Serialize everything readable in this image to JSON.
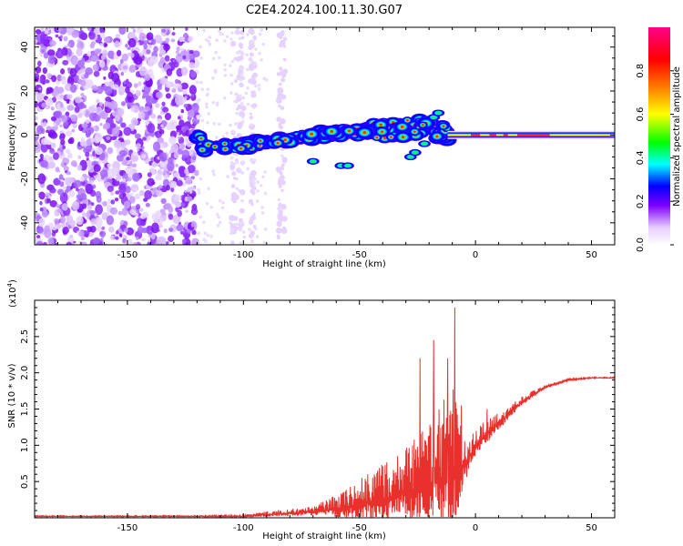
{
  "title": "C2E4.2024.100.11.30.G07",
  "chart_data": [
    {
      "type": "heatmap",
      "title": "C2E4.2024.100.11.30.G07",
      "xlabel": "Height of straight line (km)",
      "ylabel": "Frequency (Hz)",
      "xlim": [
        -190,
        60
      ],
      "ylim": [
        -50,
        49
      ],
      "xticks": [
        -150,
        -100,
        -50,
        0,
        50
      ],
      "xtick_labels": [
        "-150",
        "-100",
        "-50",
        "0",
        "50"
      ],
      "yticks": [
        -40,
        -20,
        0,
        20,
        40
      ],
      "ytick_labels": [
        "-40",
        "-20",
        "0",
        "20",
        "40"
      ],
      "colorbar": {
        "label": "Normalized spectral amplitude",
        "range": [
          0,
          1
        ],
        "ticks": [
          0.0,
          0.2,
          0.4,
          0.6,
          0.8
        ],
        "tick_labels": [
          "0.0",
          "0.2",
          "0.4",
          "0.6",
          "0.8"
        ],
        "colormap": [
          "#ffffff",
          "#7f00ff",
          "#0000ff",
          "#00ffff",
          "#00ff00",
          "#ffff00",
          "#ff8000",
          "#ff0000",
          "#ff0088"
        ]
      },
      "description_series": {
        "noise_region_x": [
          -190,
          -120
        ],
        "noise_sparse_bands_x": [
          [
            -105,
            -100
          ],
          [
            -97,
            -95
          ],
          [
            -85,
            -82
          ]
        ],
        "ridge": [
          {
            "x": -118,
            "y": -6
          },
          {
            "x": -100,
            "y": -5
          },
          {
            "x": -80,
            "y": -2
          },
          {
            "x": -60,
            "y": 1
          },
          {
            "x": -40,
            "y": 2
          },
          {
            "x": -20,
            "y": 4
          },
          {
            "x": -12,
            "y": 0
          },
          {
            "x": 0,
            "y": 0
          },
          {
            "x": 30,
            "y": 0
          },
          {
            "x": 60,
            "y": 0
          }
        ]
      }
    },
    {
      "type": "line",
      "xlabel": "Height of straight line (km)",
      "ylabel": "SNR (10 * v/v)",
      "y_scale_label": "(x10",
      "y_scale_exp": "4",
      "y_scale_close": ")",
      "xlim": [
        -190,
        60
      ],
      "ylim": [
        0,
        3.0
      ],
      "xticks": [
        -150,
        -100,
        -50,
        0,
        50
      ],
      "xtick_labels": [
        "-150",
        "-100",
        "-50",
        "0",
        "50"
      ],
      "yticks": [
        0.5,
        1.0,
        1.5,
        2.0,
        2.5
      ],
      "ytick_labels": [
        "0.5",
        "1.0",
        "1.5",
        "2.0",
        "2.5"
      ],
      "color": "#e8302c",
      "envelope": {
        "x": [
          -190,
          -120,
          -100,
          -90,
          -80,
          -70,
          -60,
          -50,
          -40,
          -30,
          -20,
          -15,
          -10,
          -5,
          0,
          10,
          20,
          30,
          40,
          50,
          60
        ],
        "base": [
          0.02,
          0.02,
          0.02,
          0.04,
          0.06,
          0.08,
          0.12,
          0.18,
          0.25,
          0.35,
          0.45,
          0.5,
          0.55,
          0.7,
          1.0,
          1.3,
          1.6,
          1.8,
          1.9,
          1.93,
          1.93
        ],
        "amp": [
          0.01,
          0.01,
          0.02,
          0.05,
          0.06,
          0.08,
          0.2,
          0.35,
          0.5,
          0.65,
          0.85,
          1.1,
          1.3,
          0.4,
          0.25,
          0.15,
          0.08,
          0.04,
          0.02,
          0.01,
          0.01
        ]
      },
      "peaks": [
        {
          "x": -24,
          "y": 2.2
        },
        {
          "x": -18,
          "y": 2.45
        },
        {
          "x": -12,
          "y": 2.2
        },
        {
          "x": -9,
          "y": 2.9
        },
        {
          "x": -6,
          "y": 1.55
        },
        {
          "x": 5,
          "y": 1.5
        }
      ]
    }
  ]
}
